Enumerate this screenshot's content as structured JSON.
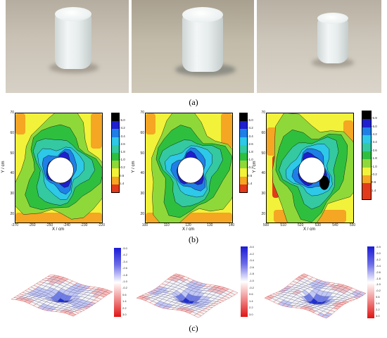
{
  "captions": {
    "a": "(a)",
    "b": "(b)",
    "c": "(c)"
  },
  "contour_panels": [
    {
      "xticks": [
        "-270",
        "-260",
        "-250",
        "-240",
        "-230",
        "-220"
      ],
      "yticks": [
        "70",
        "60",
        "50",
        "40",
        "30",
        "20"
      ],
      "xlabel": "X / cm",
      "ylabel": "Y / cm",
      "colorbar": [
        "-5.0",
        "-4.2",
        "-3.4",
        "-2.6",
        "-1.8",
        "-1.0",
        "-0.2",
        "0.6",
        "1.4"
      ]
    },
    {
      "xticks": [
        "100",
        "110",
        "120",
        "130",
        "140"
      ],
      "yticks": [
        "70",
        "60",
        "50",
        "40",
        "30",
        "20"
      ],
      "xlabel": "X / cm",
      "ylabel": "Y / cm",
      "colorbar": [
        "-5.0",
        "-4.2",
        "-3.4",
        "-2.6",
        "-1.8",
        "-1.0",
        "-0.2",
        "0.6",
        "1.4"
      ]
    },
    {
      "xticks": [
        "500",
        "510",
        "520",
        "530",
        "540",
        "550"
      ],
      "yticks": [
        "70",
        "60",
        "50",
        "40",
        "30",
        "20"
      ],
      "xlabel": "X / cm",
      "ylabel": "Y / cm",
      "colorbar": [
        "-5.9",
        "-5.0",
        "-4.2",
        "-3.4",
        "-2.6",
        "-1.8",
        "-1.0",
        "-0.2",
        "0.6",
        "1.4"
      ]
    }
  ],
  "surface_panels": [
    {
      "colorbar": [
        "-5.0",
        "-4.2",
        "-3.4",
        "-2.6",
        "-1.8",
        "-1.0",
        "-0.2",
        "0.6",
        "1.4",
        "2.2",
        "3.0"
      ]
    },
    {
      "colorbar": [
        "-5.0",
        "-4.2",
        "-3.4",
        "-2.6",
        "-1.8",
        "-1.0",
        "-0.2",
        "0.6",
        "1.4",
        "2.2",
        "3.0"
      ]
    },
    {
      "colorbar": [
        "-5.9",
        "-5.0",
        "-4.2",
        "-3.4",
        "-2.6",
        "-1.8",
        "-1.0",
        "-0.2",
        "0.6",
        "1.4",
        "2.2",
        "3.0"
      ]
    }
  ],
  "colors": {
    "contour_levels": [
      "#000000",
      "#1f1fcf",
      "#1f7fe6",
      "#2ec8e8",
      "#34c9a0",
      "#2fbf3f",
      "#8fd83a",
      "#f2f23a",
      "#f5a623",
      "#e23b1b"
    ]
  }
}
